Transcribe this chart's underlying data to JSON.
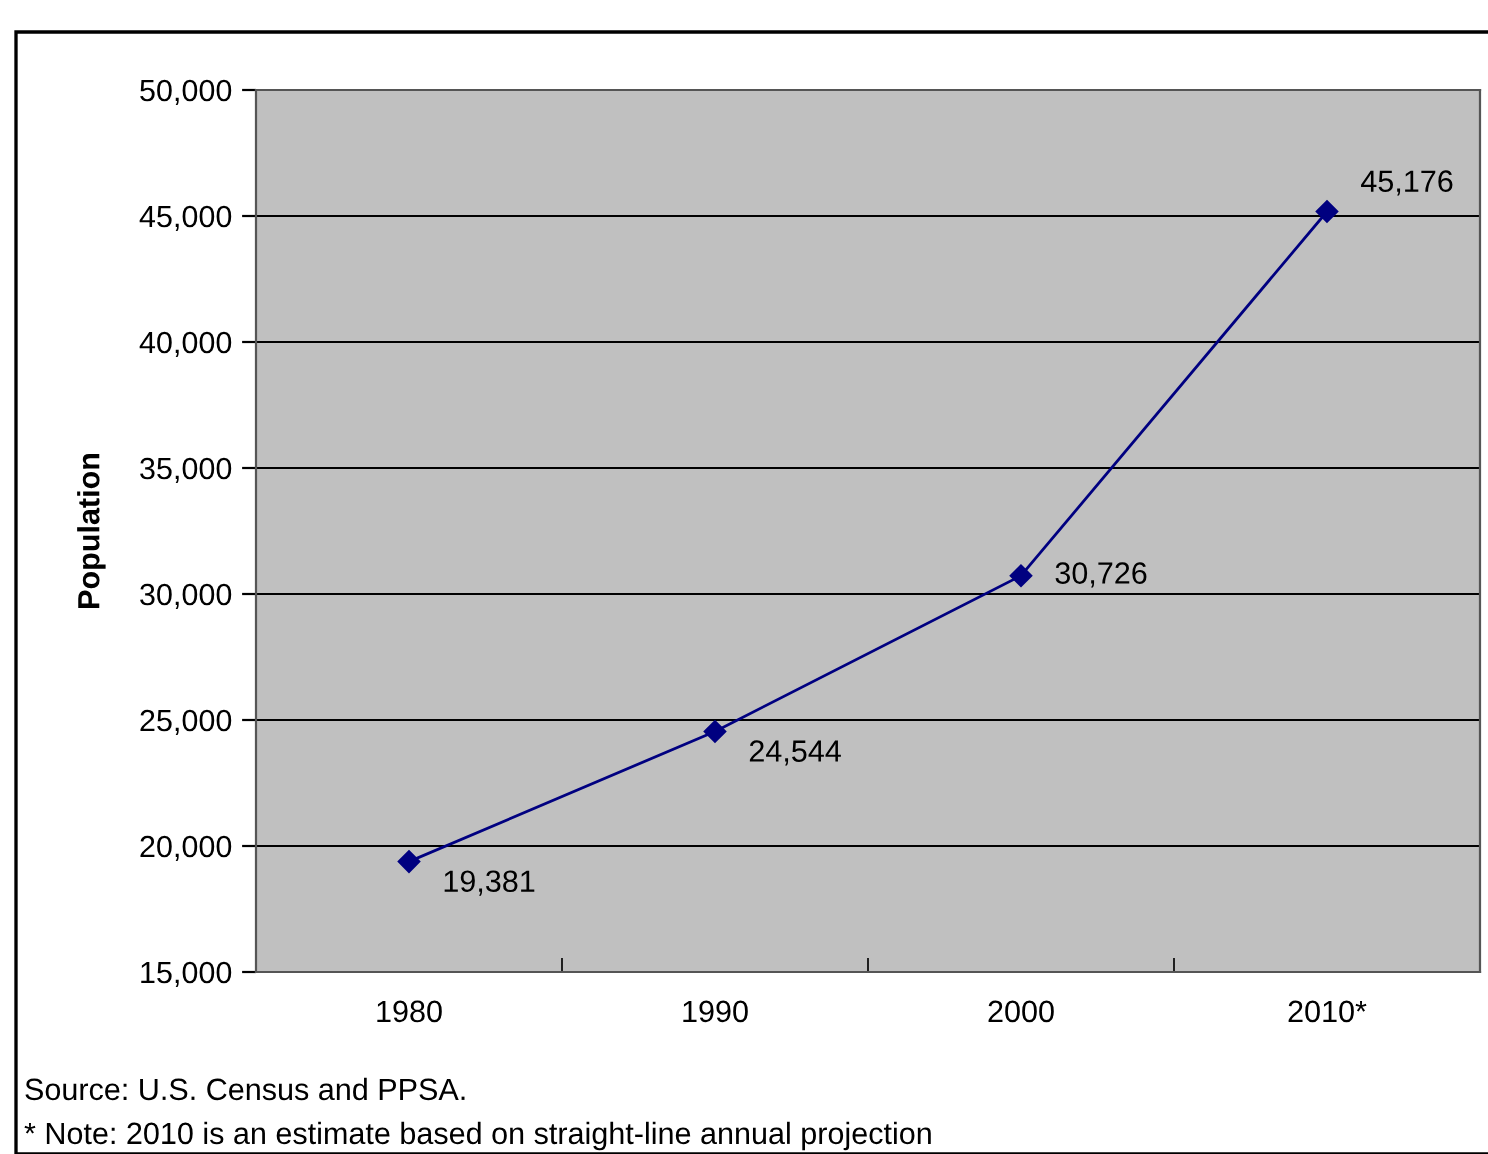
{
  "chart_data": {
    "type": "line",
    "ylabel": "Population",
    "categories": [
      "1980",
      "1990",
      "2000",
      "2010*"
    ],
    "series": [
      {
        "color": "#000080",
        "values": [
          19381,
          24544,
          30726,
          45176
        ],
        "value_labels": [
          "19,381",
          "24,544",
          "30,726",
          "45,176"
        ]
      }
    ],
    "marker": "diamond",
    "line_style": "solid",
    "ylim": [
      15000,
      50000
    ],
    "yticks": [
      {
        "value": 15000,
        "label": "15,000"
      },
      {
        "value": 20000,
        "label": "20,000"
      },
      {
        "value": 25000,
        "label": "25,000"
      },
      {
        "value": 30000,
        "label": "30,000"
      },
      {
        "value": 35000,
        "label": "35,000"
      },
      {
        "value": 40000,
        "label": "40,000"
      },
      {
        "value": 45000,
        "label": "45,000"
      },
      {
        "value": 50000,
        "label": "50,000"
      }
    ],
    "grid": "y",
    "legend": false,
    "annotations": [
      "Source: U.S. Census and PPSA.",
      "* Note: 2010 is an estimate based on straight-line annual projection"
    ]
  }
}
